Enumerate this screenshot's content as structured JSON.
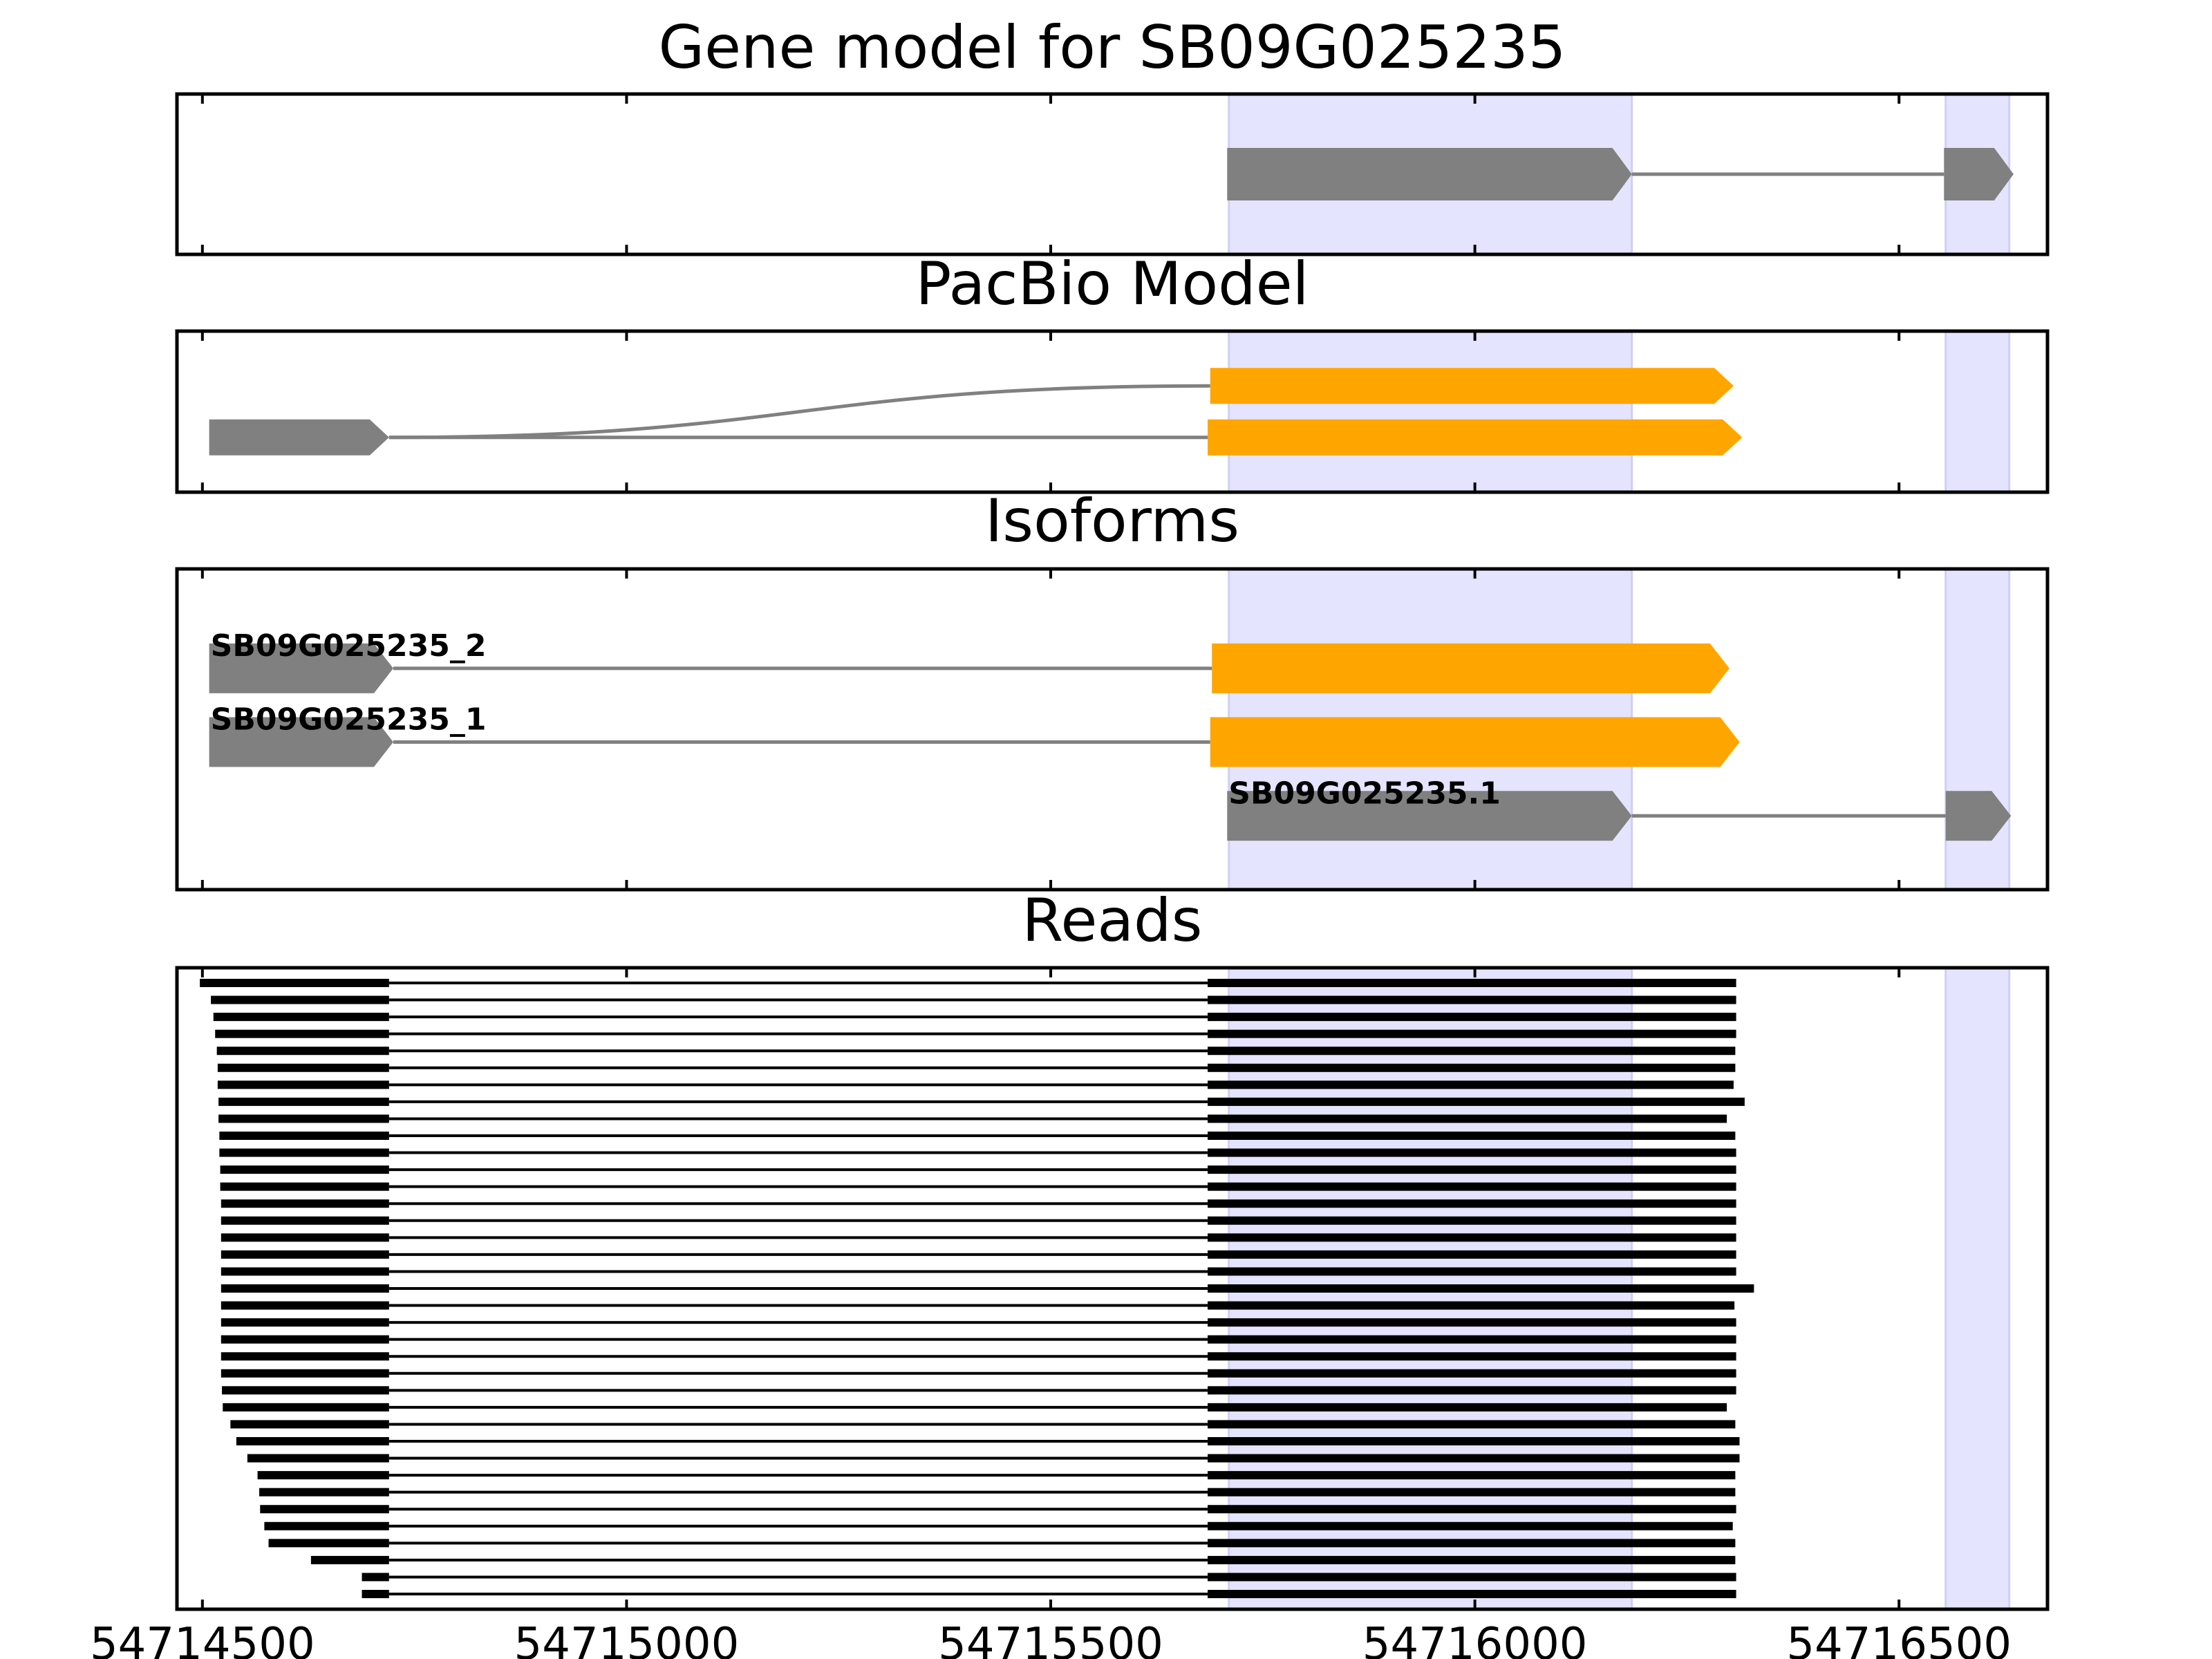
{
  "chart_data": {
    "type": "genome-track",
    "x_ticks": [
      54714500,
      54715000,
      54715500,
      54716000,
      54716500
    ],
    "xlim": [
      54714470,
      54716675
    ],
    "highlight_regions": [
      [
        54715710,
        54716185
      ],
      [
        54716555,
        54716630
      ]
    ],
    "colors": {
      "highlight": "#e4e4ff",
      "intron": "#808080",
      "exon_gray": "#808080",
      "exon_orange": "#ffa500",
      "read": "#000000"
    },
    "panels": [
      {
        "title": "Gene model for SB09G025235",
        "transcripts": [
          {
            "label": "",
            "exons": [
              [
                54715708,
                54716185,
                "gray"
              ],
              [
                54716553,
                54716635,
                "gray"
              ]
            ]
          }
        ]
      },
      {
        "title": "PacBio Model",
        "transcripts": [
          {
            "label": "",
            "exons": [
              [
                54714508,
                54714720,
                "gray"
              ],
              [
                54715688,
                54716305,
                "orange"
              ]
            ],
            "curve_from_prev": true
          },
          {
            "label": "",
            "exons": [
              [
                54714508,
                54714720,
                "gray"
              ],
              [
                54715685,
                54716315,
                "orange"
              ]
            ]
          }
        ]
      },
      {
        "title": "Isoforms",
        "transcripts": [
          {
            "label": "SB09G025235_2",
            "exons": [
              [
                54714508,
                54714725,
                "gray"
              ],
              [
                54715690,
                54716300,
                "orange"
              ]
            ]
          },
          {
            "label": "SB09G025235_1",
            "exons": [
              [
                54714508,
                54714725,
                "gray"
              ],
              [
                54715688,
                54716312,
                "orange"
              ]
            ]
          },
          {
            "label": "SB09G025235.1",
            "exons": [
              [
                54715708,
                54716185,
                "gray"
              ],
              [
                54716555,
                54716632,
                "gray"
              ]
            ]
          }
        ]
      },
      {
        "title": "Reads",
        "reads": [
          [
            54714497,
            54716308
          ],
          [
            54714510,
            54716308
          ],
          [
            54714513,
            54716308
          ],
          [
            54714515,
            54716308
          ],
          [
            54714517,
            54716307
          ],
          [
            54714518,
            54716307
          ],
          [
            54714518,
            54716305
          ],
          [
            54714519,
            54716318
          ],
          [
            54714519,
            54716297
          ],
          [
            54714520,
            54716307
          ],
          [
            54714520,
            54716308
          ],
          [
            54714521,
            54716308
          ],
          [
            54714521,
            54716308
          ],
          [
            54714522,
            54716308
          ],
          [
            54714522,
            54716308
          ],
          [
            54714522,
            54716308
          ],
          [
            54714522,
            54716308
          ],
          [
            54714522,
            54716308
          ],
          [
            54714522,
            54716329
          ],
          [
            54714522,
            54716306
          ],
          [
            54714522,
            54716308
          ],
          [
            54714522,
            54716308
          ],
          [
            54714522,
            54716308
          ],
          [
            54714522,
            54716308
          ],
          [
            54714523,
            54716308
          ],
          [
            54714524,
            54716297
          ],
          [
            54714533,
            54716307
          ],
          [
            54714540,
            54716312
          ],
          [
            54714553,
            54716312
          ],
          [
            54714565,
            54716307
          ],
          [
            54714567,
            54716307
          ],
          [
            54714568,
            54716308
          ],
          [
            54714573,
            54716304
          ],
          [
            54714578,
            54716307
          ],
          [
            54714628,
            54716307
          ],
          [
            54714688,
            54716308
          ],
          [
            54714688,
            54716308
          ]
        ],
        "read_split": [
          54714720,
          54715685
        ]
      }
    ]
  }
}
